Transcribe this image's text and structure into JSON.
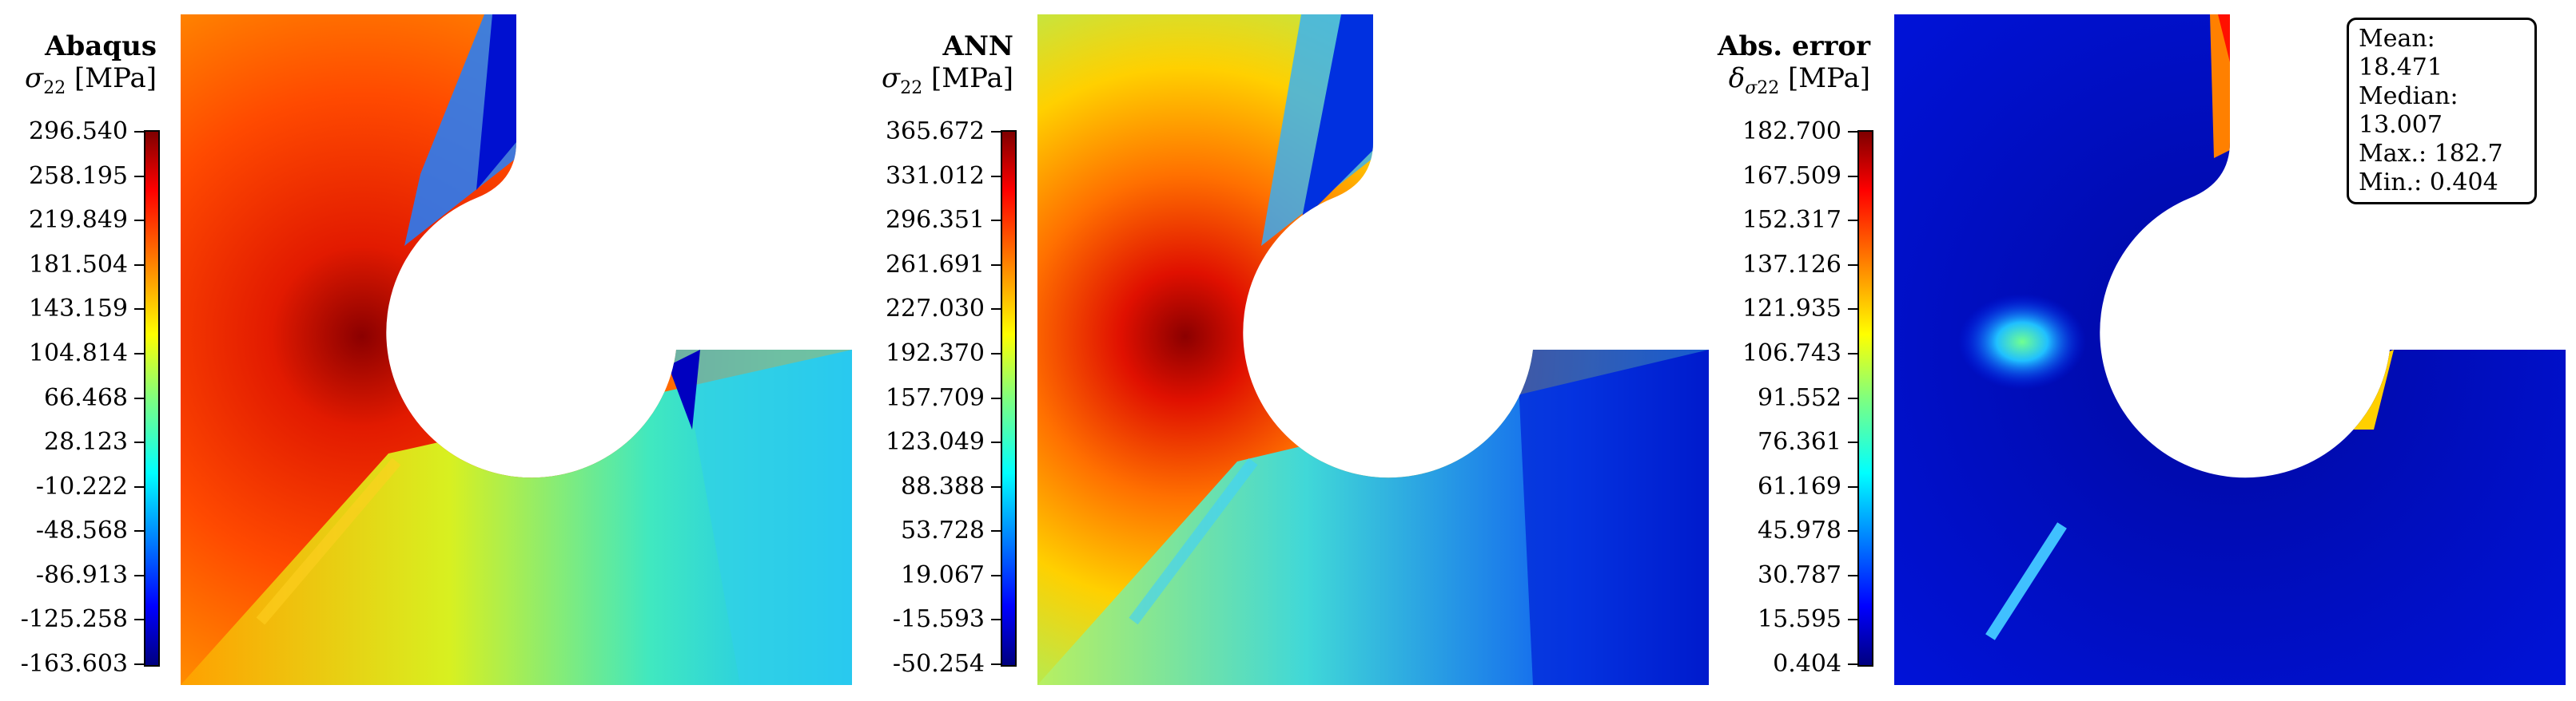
{
  "chart_data": [
    {
      "type": "heatmap",
      "title": "Abaqus",
      "quantity": "σ22 [MPa]",
      "colormap": "jet",
      "range": [
        -163.603,
        296.54
      ],
      "ticks": [
        "296.540",
        "258.195",
        "219.849",
        "181.504",
        "143.159",
        "104.814",
        "66.468",
        "28.123",
        "-10.222",
        "-48.568",
        "-86.913",
        "-125.258",
        "-163.603"
      ]
    },
    {
      "type": "heatmap",
      "title": "ANN",
      "quantity": "σ22 [MPa]",
      "colormap": "jet",
      "range": [
        -50.254,
        365.672
      ],
      "ticks": [
        "365.672",
        "331.012",
        "296.351",
        "261.691",
        "227.030",
        "192.370",
        "157.709",
        "123.049",
        "88.388",
        "53.728",
        "19.067",
        "-15.593",
        "-50.254"
      ]
    },
    {
      "type": "heatmap",
      "title": "Abs. error",
      "quantity": "δσ22 [MPa]",
      "colormap": "jet",
      "range": [
        0.404,
        182.7
      ],
      "ticks": [
        "182.700",
        "167.509",
        "152.317",
        "137.126",
        "121.935",
        "106.743",
        "91.552",
        "76.361",
        "61.169",
        "45.978",
        "30.787",
        "15.595",
        "0.404"
      ],
      "stats": [
        "Mean: 18.471",
        "Median: 13.007",
        "Max.: 182.7",
        "Min.: 0.404"
      ]
    }
  ],
  "labels": {
    "p1_title": "Abaqus",
    "p2_title": "ANN",
    "p3_title": "Abs. error",
    "stat_mean": "Mean: 18.471",
    "stat_median": "Median: 13.007",
    "stat_max": "Max.: 182.7",
    "stat_min": "Min.: 0.404"
  }
}
